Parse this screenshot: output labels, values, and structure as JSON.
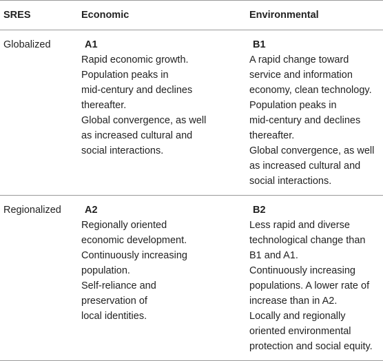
{
  "table": {
    "header": [
      "SRES",
      "Economic",
      "Environmental"
    ],
    "rows": [
      {
        "label": "Globalized",
        "cells": [
          {
            "heading": "A1",
            "lines": [
              "Rapid economic growth.",
              "Population peaks in",
              "mid-century and declines",
              "thereafter.",
              "Global convergence, as well",
              "as increased cultural and",
              "social interactions."
            ]
          },
          {
            "heading": "B1",
            "lines": [
              "A rapid change toward",
              "service and information",
              "economy, clean technology.",
              "Population peaks in",
              "mid-century and declines",
              "thereafter.",
              "Global convergence, as well",
              "as increased cultural and",
              "social interactions."
            ]
          }
        ]
      },
      {
        "label": "Regionalized",
        "cells": [
          {
            "heading": "A2",
            "lines": [
              "Regionally oriented",
              "economic development.",
              "Continuously increasing",
              "population.",
              "Self-reliance and",
              "preservation of",
              "local identities."
            ]
          },
          {
            "heading": "B2",
            "lines": [
              "Less rapid and diverse",
              "technological change than",
              "B1 and A1.",
              "Continuously increasing",
              "populations. A lower rate of",
              "increase than in A2.",
              "Locally and regionally",
              "oriented environmental",
              "protection and social equity."
            ]
          }
        ]
      }
    ]
  }
}
